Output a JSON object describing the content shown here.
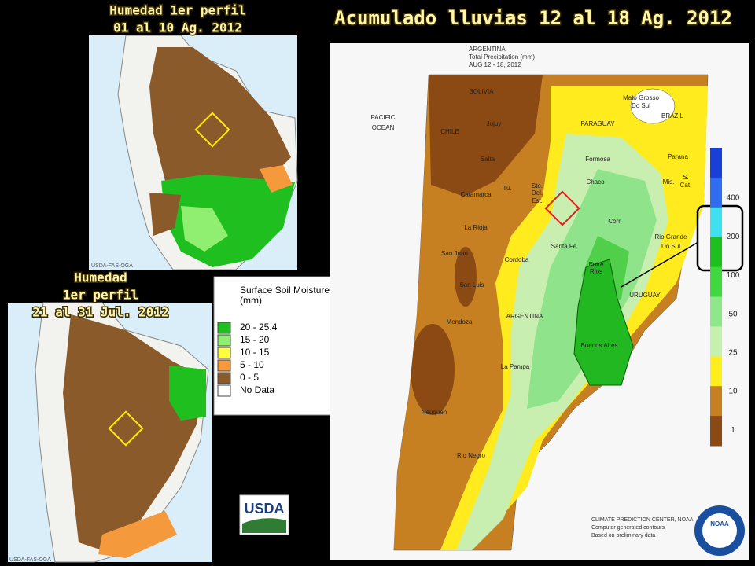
{
  "title": "Acumulado lluvias 12 al 18 Ag. 2012",
  "top_map": {
    "title_lines": [
      "Humedad 1er perfil",
      "01 al 10 Ag. 2012"
    ],
    "watermark": "USDA-FAS-OGA"
  },
  "bottom_map": {
    "title_lines": [
      "Humedad",
      "1er perfil",
      "21 al 31 Jul. 2012"
    ],
    "watermark": "USDA-FAS-OGA"
  },
  "soil_legend": {
    "title_lines": [
      "Surface Soil Moisture",
      "(mm)"
    ],
    "items": [
      {
        "label": "20 - 25.4",
        "color": "#1fbf1f"
      },
      {
        "label": "15 - 20",
        "color": "#90ee70"
      },
      {
        "label": "10 - 15",
        "color": "#ffff40"
      },
      {
        "label": "5 - 10",
        "color": "#f59a3c"
      },
      {
        "label": "0 - 5",
        "color": "#8b5a2b"
      },
      {
        "label": "No Data",
        "color": "#ffffff"
      }
    ]
  },
  "precip_map": {
    "header": [
      "ARGENTINA",
      "Total Precipitation (mm)",
      "AUG 12 - 18, 2012"
    ],
    "labels": [
      "PACIFIC",
      "OCEAN",
      "BOLIVIA",
      "CHILE",
      "PARAGUAY",
      "BRAZIL",
      "Mato Grosso",
      "Do Sul",
      "Jujuy",
      "Salta",
      "Formosa",
      "Chaco",
      "Parana",
      "Mis.",
      "S.",
      "Cat.",
      "Tu.",
      "Catamarca",
      "Sto.",
      "Del.",
      "Est.",
      "Corr.",
      "La Rioja",
      "Rio Grande",
      "Do Sul",
      "San Juan",
      "Cordoba",
      "Santa Fe",
      "Entre",
      "Rios",
      "URUGUAY",
      "San Luis",
      "Mendoza",
      "ARGENTINA",
      "Buenos Aires",
      "La Pampa",
      "Neuquen",
      "Rio Negro"
    ],
    "footer": [
      "CLIMATE PREDICTION CENTER, NOAA",
      "Computer generated contours",
      "Based on preliminary data"
    ],
    "colorbar": {
      "ticks": [
        400,
        200,
        100,
        50,
        25,
        10,
        1
      ]
    }
  },
  "logos": {
    "usda": "USDA",
    "noaa": "NOAA"
  }
}
